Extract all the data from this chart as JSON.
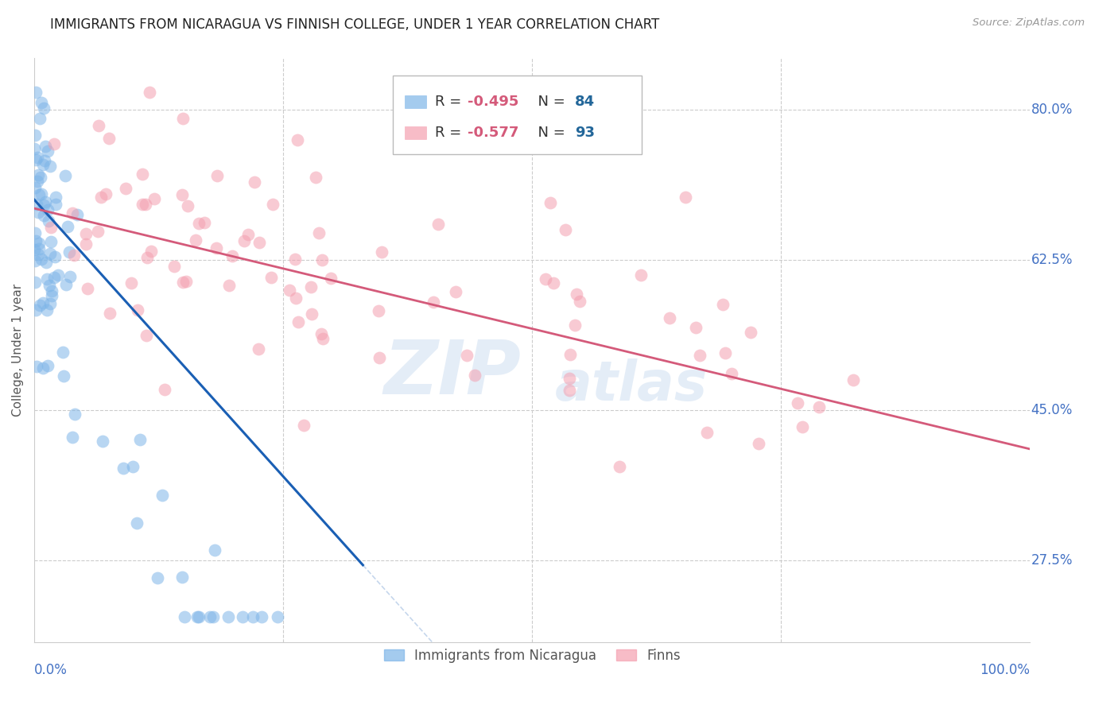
{
  "title": "IMMIGRANTS FROM NICARAGUA VS FINNISH COLLEGE, UNDER 1 YEAR CORRELATION CHART",
  "source": "Source: ZipAtlas.com",
  "ylabel_label": "College, Under 1 year",
  "ylabel_ticks": [
    "27.5%",
    "45.0%",
    "62.5%",
    "80.0%"
  ],
  "watermark_zip": "ZIP",
  "watermark_atlas": "atlas",
  "blue_color": "#7EB5E8",
  "pink_color": "#F4A0B0",
  "blue_line_color": "#1A5FB4",
  "pink_line_color": "#D45A7A",
  "blue_seed": 42,
  "pink_seed": 99,
  "xmin": 0.0,
  "xmax": 1.0,
  "ymin": 0.18,
  "ymax": 0.86,
  "ytick_values": [
    0.275,
    0.45,
    0.625,
    0.8
  ],
  "grid_color": "#CCCCCC",
  "tick_color": "#4472C4",
  "title_fontsize": 12,
  "tick_fontsize": 12,
  "legend_r_color": "#CC2244",
  "legend_n_color": "#226699"
}
